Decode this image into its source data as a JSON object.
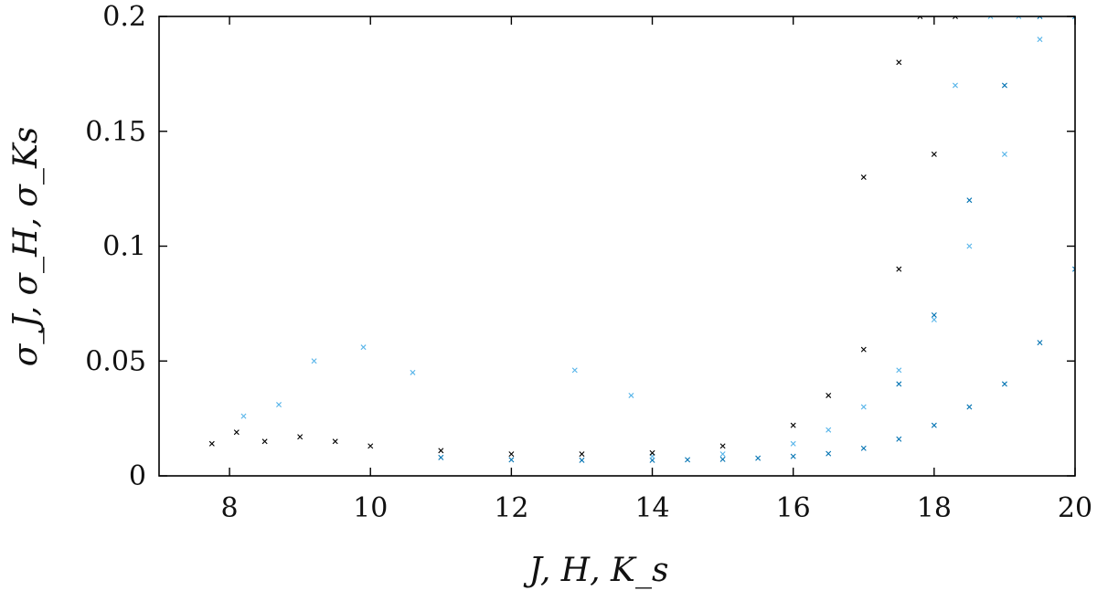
{
  "chart_data": {
    "type": "scatter",
    "title": "",
    "xlabel": "J, H, K_s",
    "ylabel": "σ_J, σ_H, σ_Ks",
    "xlim": [
      7,
      20
    ],
    "ylim": [
      0,
      0.2
    ],
    "x_ticks": [
      8,
      10,
      12,
      14,
      16,
      18,
      20
    ],
    "y_ticks": [
      0,
      0.05,
      0.1,
      0.15,
      0.2
    ],
    "x_tick_labels": [
      "8",
      "10",
      "12",
      "14",
      "16",
      "18",
      "20"
    ],
    "y_tick_labels": [
      "0",
      "0.05",
      "0.1",
      "0.15",
      "0.2"
    ],
    "grid": false,
    "legend": "none",
    "marker": "x",
    "series": [
      {
        "color": "#0072b2",
        "x_range": [
          10.5,
          20
        ],
        "points": [
          [
            11,
            0.008
          ],
          [
            12,
            0.007
          ],
          [
            13,
            0.0068
          ],
          [
            14,
            0.0068
          ],
          [
            14.5,
            0.007
          ],
          [
            15,
            0.0072
          ],
          [
            15.5,
            0.0077
          ],
          [
            16,
            0.0085
          ],
          [
            16.5,
            0.0097
          ],
          [
            17,
            0.012
          ],
          [
            17.5,
            0.016
          ],
          [
            18,
            0.022
          ],
          [
            18.5,
            0.03
          ],
          [
            19,
            0.04
          ],
          [
            19.5,
            0.058
          ],
          [
            20,
            0.09
          ],
          [
            20,
            0.2
          ],
          [
            19.5,
            0.2
          ],
          [
            19,
            0.17
          ],
          [
            18.5,
            0.12
          ],
          [
            18,
            0.07
          ],
          [
            17.5,
            0.04
          ]
        ]
      },
      {
        "color": "#56b4e9",
        "x_range": [
          8,
          20
        ],
        "points": [
          [
            8.2,
            0.026
          ],
          [
            8.7,
            0.031
          ],
          [
            9.2,
            0.05
          ],
          [
            9.9,
            0.056
          ],
          [
            10.6,
            0.045
          ],
          [
            12.9,
            0.046
          ],
          [
            13.7,
            0.035
          ],
          [
            14,
            0.0085
          ],
          [
            15,
            0.0095
          ],
          [
            16,
            0.014
          ],
          [
            16.5,
            0.02
          ],
          [
            17,
            0.03
          ],
          [
            17.5,
            0.046
          ],
          [
            18,
            0.068
          ],
          [
            18.5,
            0.1
          ],
          [
            19,
            0.14
          ],
          [
            19.5,
            0.19
          ],
          [
            19.2,
            0.2
          ],
          [
            18.8,
            0.2
          ],
          [
            18.3,
            0.17
          ]
        ]
      },
      {
        "color": "#000000",
        "x_range": [
          7.7,
          19
        ],
        "points": [
          [
            7.75,
            0.014
          ],
          [
            8.1,
            0.019
          ],
          [
            8.5,
            0.015
          ],
          [
            9.0,
            0.017
          ],
          [
            9.5,
            0.015
          ],
          [
            10,
            0.013
          ],
          [
            11,
            0.011
          ],
          [
            12,
            0.0095
          ],
          [
            13,
            0.0095
          ],
          [
            14,
            0.01
          ],
          [
            15,
            0.013
          ],
          [
            16,
            0.022
          ],
          [
            16.5,
            0.035
          ],
          [
            17,
            0.055
          ],
          [
            17.5,
            0.09
          ],
          [
            18,
            0.14
          ],
          [
            18.3,
            0.2
          ],
          [
            17.8,
            0.2
          ],
          [
            17.5,
            0.18
          ],
          [
            17.0,
            0.13
          ]
        ]
      }
    ]
  }
}
